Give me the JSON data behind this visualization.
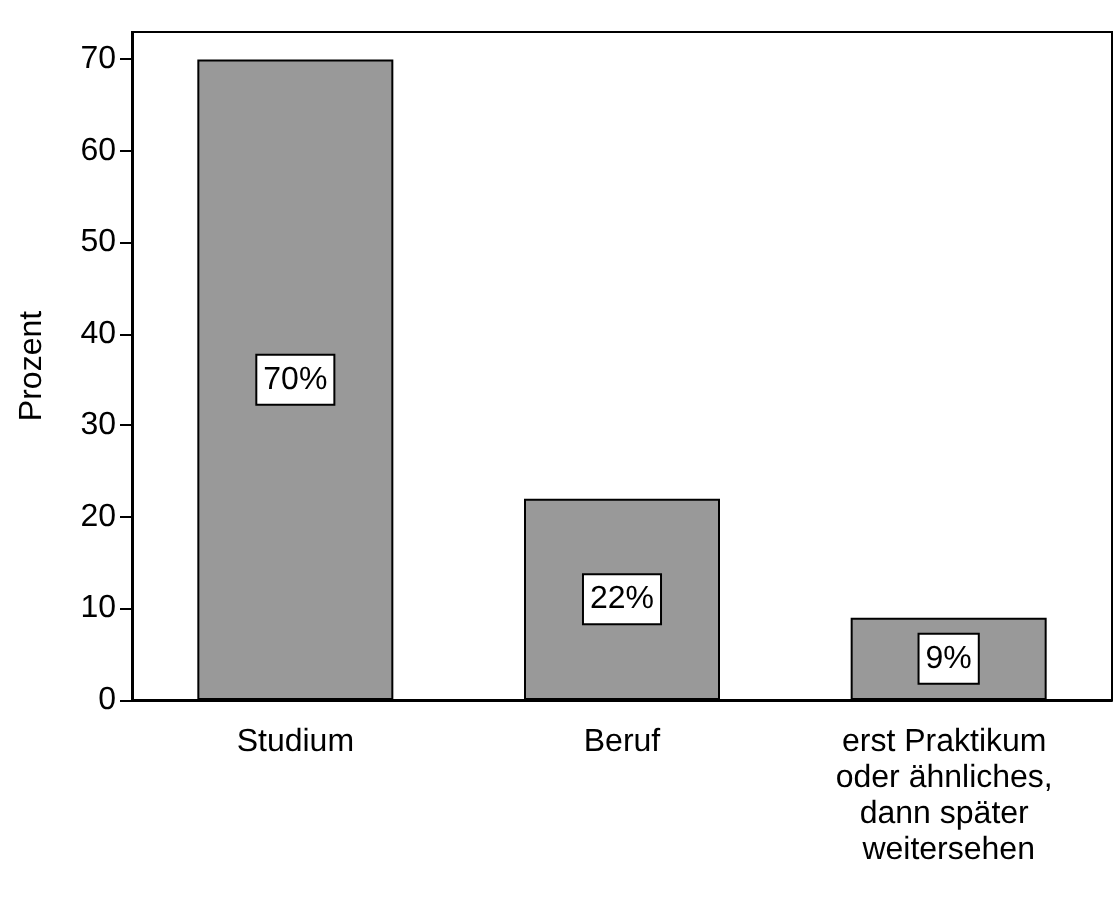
{
  "chart_data": {
    "type": "bar",
    "ylabel": "Prozent",
    "categories": [
      "Studium",
      "Beruf",
      "erst Praktikum oder ähnliches, dann später weitersehen"
    ],
    "values": [
      70,
      22,
      9
    ],
    "color": "#999999",
    "value_labels": [
      "70%",
      "22%",
      "9%"
    ],
    "ylim": [
      0,
      73
    ],
    "yticks": [
      0,
      10,
      20,
      30,
      40,
      50,
      60,
      70
    ],
    "grid": false
  }
}
